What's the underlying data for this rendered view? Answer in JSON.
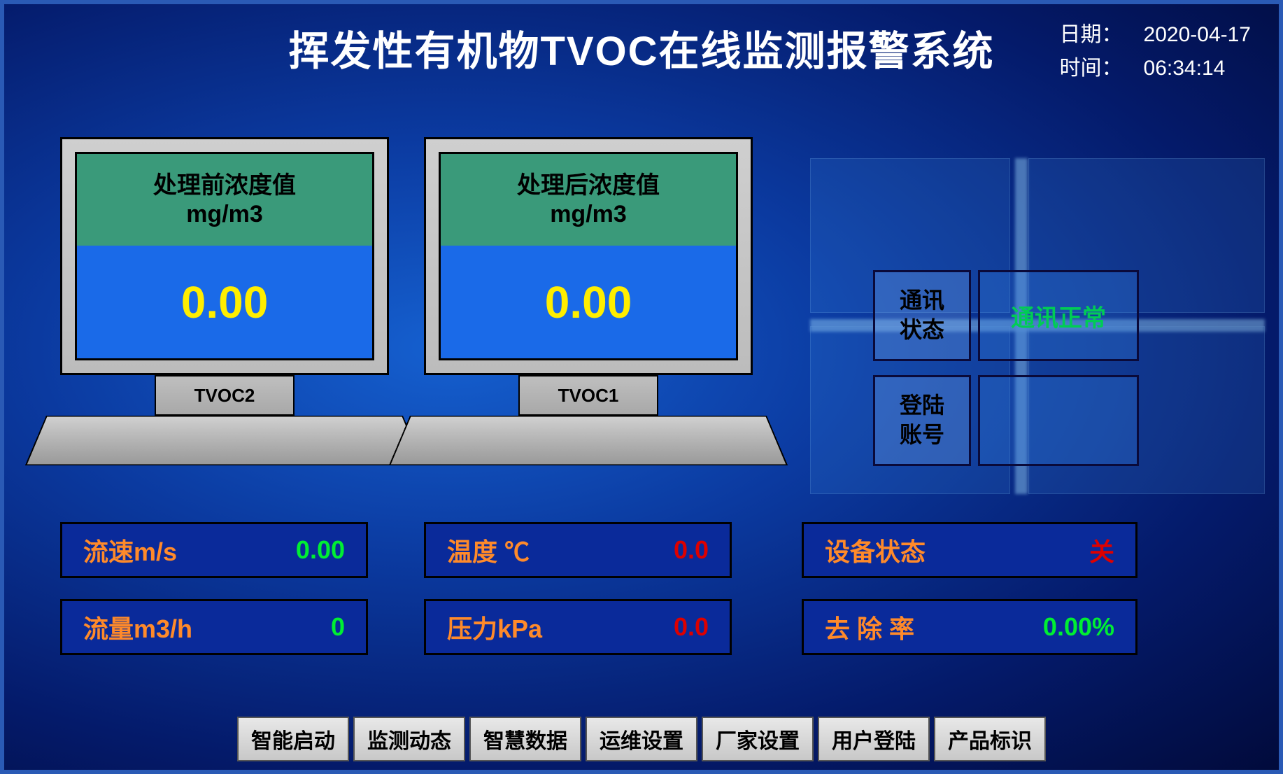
{
  "header": {
    "title": "挥发性有机物TVOC在线监测报警系统",
    "date_label": "日期：",
    "date_value": "2020-04-17",
    "time_label": "时间：",
    "time_value": "06:34:14"
  },
  "monitors": {
    "left": {
      "title_line1": "处理前浓度值",
      "unit": "mg/m3",
      "value": "0.00",
      "name": "TVOC2"
    },
    "right": {
      "title_line1": "处理后浓度值",
      "unit": "mg/m3",
      "value": "0.00",
      "name": "TVOC1"
    }
  },
  "status": {
    "comm_label_l1": "通讯",
    "comm_label_l2": "状态",
    "comm_value": "通讯正常",
    "login_label_l1": "登陆",
    "login_label_l2": "账号"
  },
  "readings": {
    "flow_speed_label": "流速m/s",
    "flow_speed_value": "0.00",
    "flow_vol_label": "流量m3/h",
    "flow_vol_value": "0",
    "temp_label": "温度 ℃",
    "temp_value": "0.0",
    "pressure_label": "压力kPa",
    "pressure_value": "0.0",
    "device_label": "设备状态",
    "device_value": "关",
    "removal_label": "去 除 率",
    "removal_value": "0.00%"
  },
  "nav": {
    "b1": "智能启动",
    "b2": "监测动态",
    "b3": "智慧数据",
    "b4": "运维设置",
    "b5": "厂家设置",
    "b6": "用户登陆",
    "b7": "产品标识"
  },
  "colors": {
    "value_yellow": "#ffee00",
    "value_green": "#00ee33",
    "value_red": "#dd0000",
    "label_orange": "#ff8a2a",
    "screen_header_bg": "#3a9a7a",
    "screen_body_bg": "#1a6ae8"
  }
}
